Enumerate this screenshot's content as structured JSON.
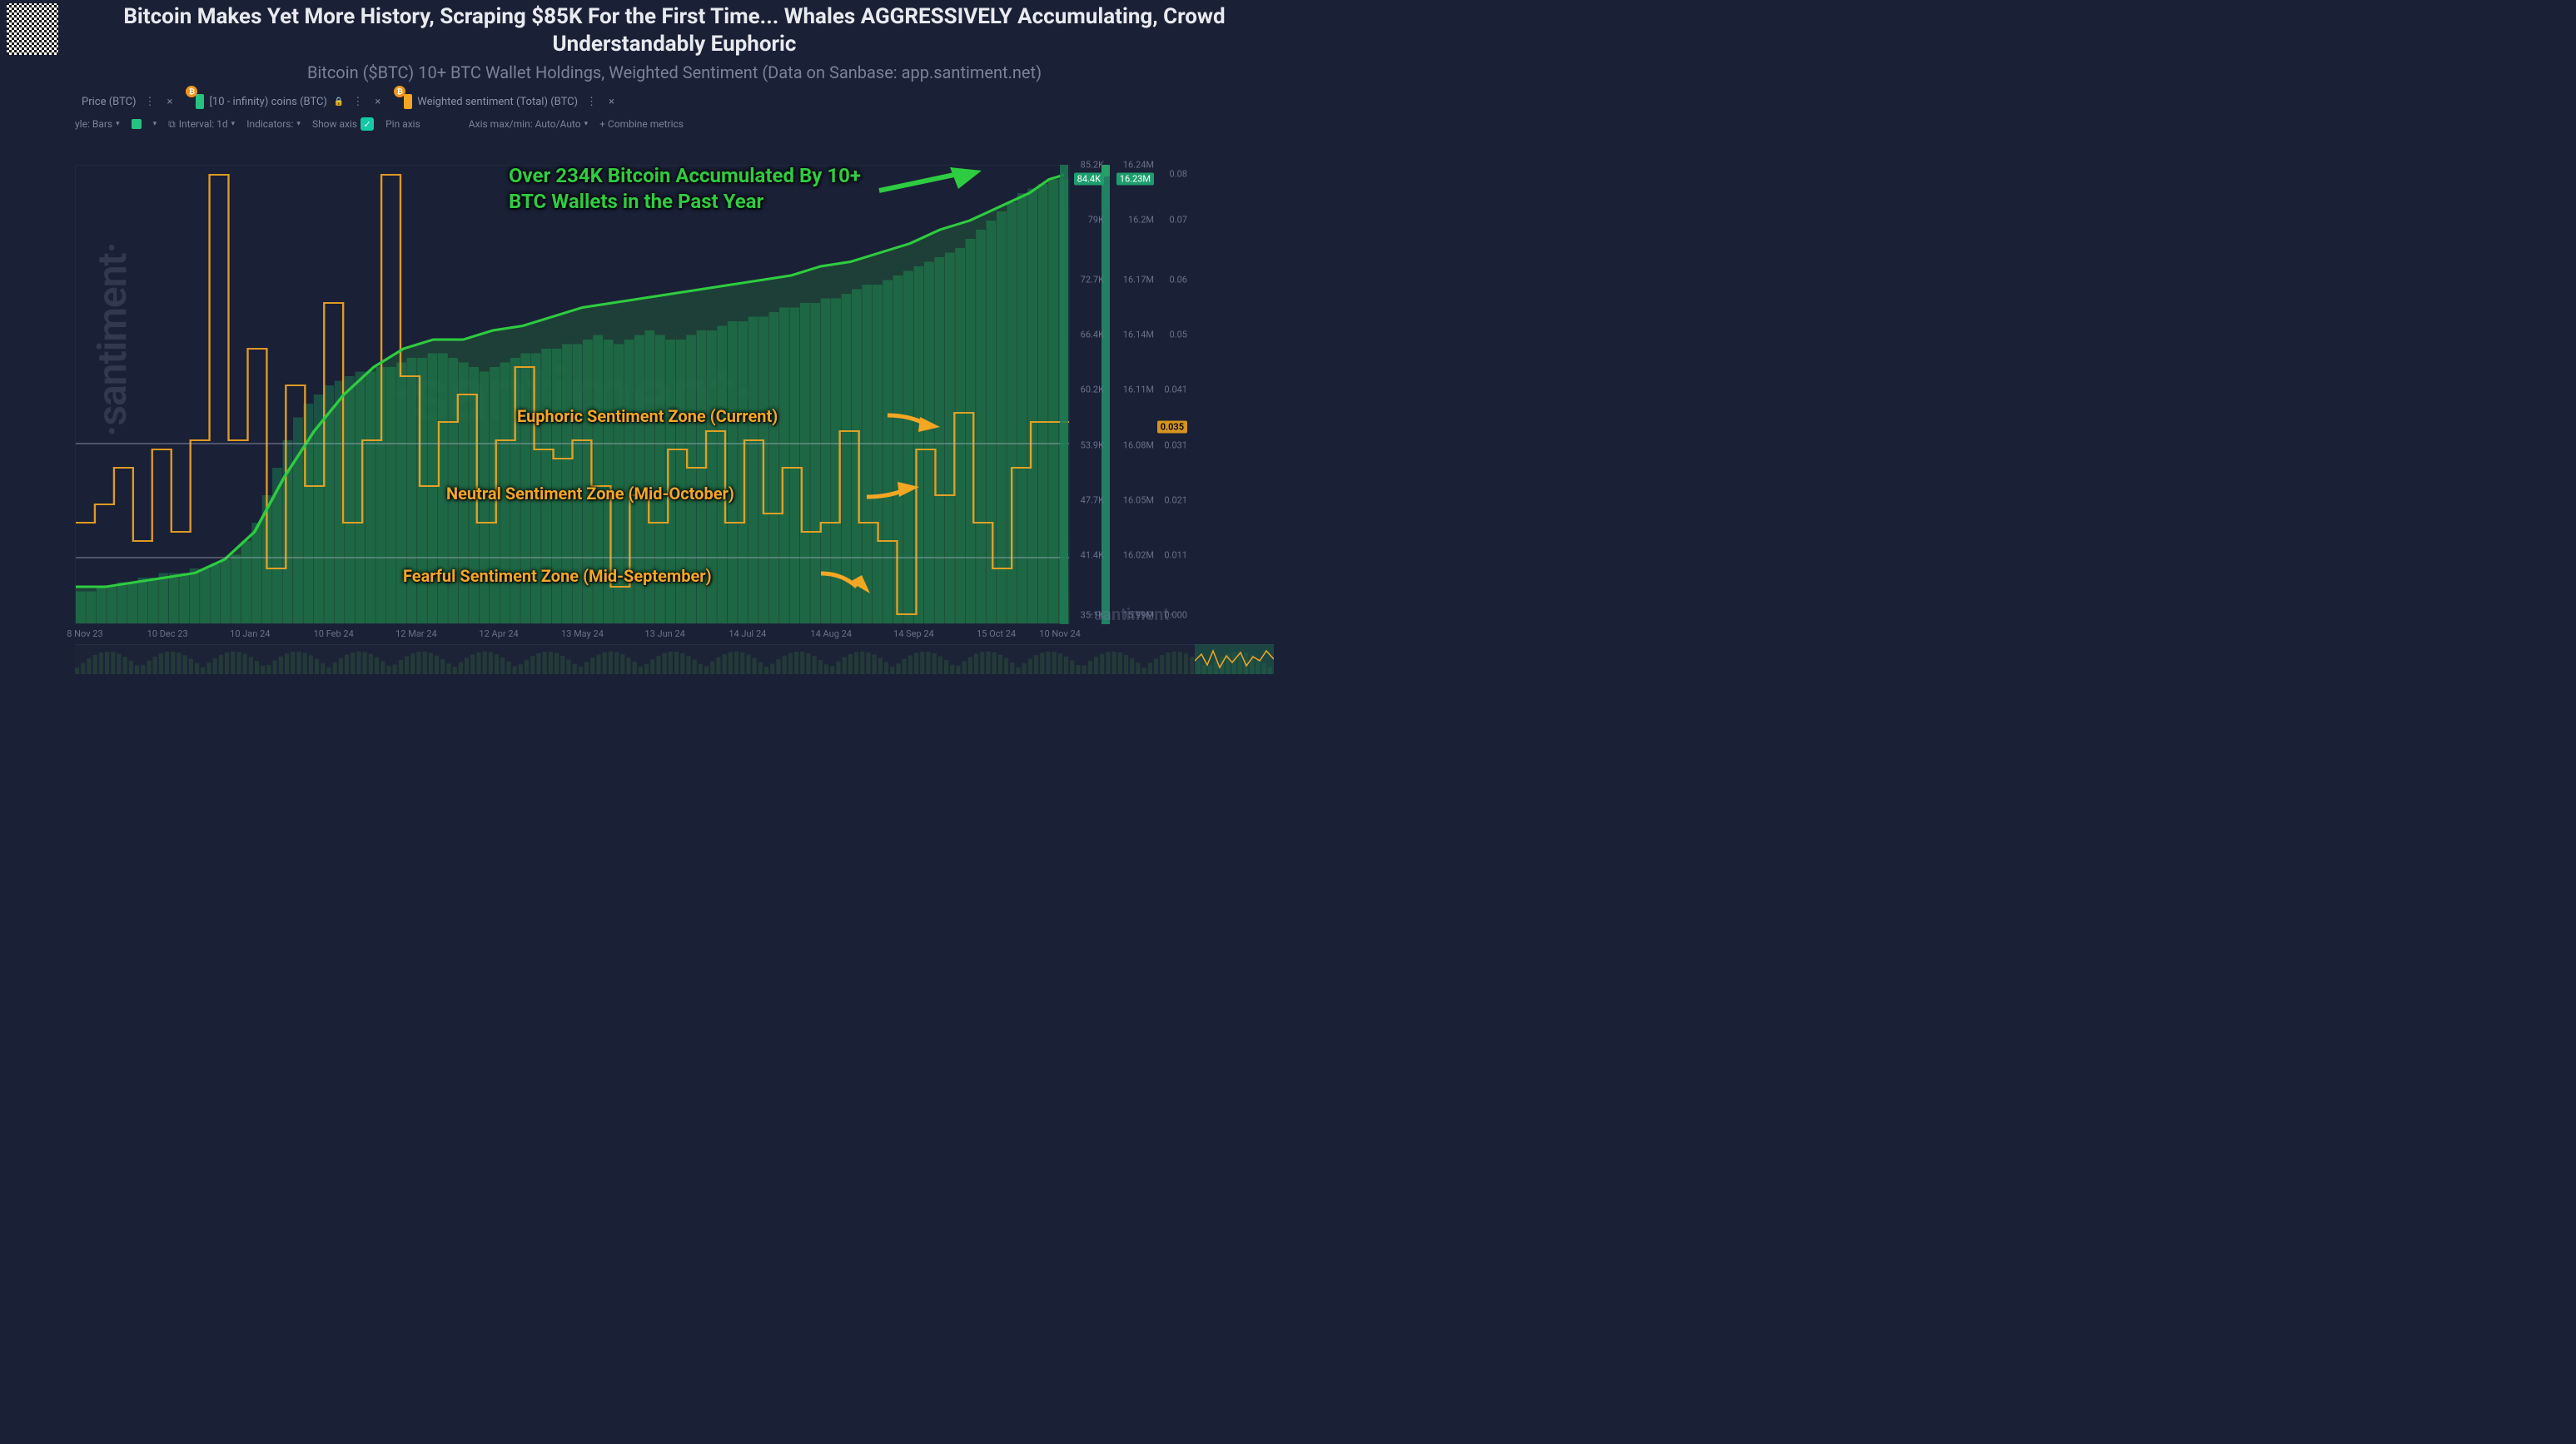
{
  "header": {
    "title": "Bitcoin Makes Yet More History, Scraping $85K For the First Time... Whales AGGRESSIVELY Accumulating, Crowd Understandably Euphoric",
    "subtitle": "Bitcoin ($BTC) 10+ BTC Wallet Holdings, Weighted Sentiment (Data on Sanbase: app.santiment.net)"
  },
  "legend": {
    "items": [
      {
        "label": "Price (BTC)",
        "swatch": null,
        "badge": false,
        "lock": false
      },
      {
        "label": "[10 - infinity) coins (BTC)",
        "swatch": "#26c281",
        "badge": true,
        "lock": true
      },
      {
        "label": "Weighted sentiment (Total) (BTC)",
        "swatch": "#f5a623",
        "badge": true,
        "lock": false
      }
    ]
  },
  "toolbar": {
    "style_label": "yle: Bars",
    "interval_label": "Interval: 1d",
    "indicators_label": "Indicators:",
    "show_axis": "Show axis",
    "pin_axis": "Pin axis",
    "axis_minmax": "Axis max/min: Auto/Auto",
    "combine": "+  Combine metrics"
  },
  "chart": {
    "type": "combo-bar-line-step",
    "background": "#1a2035",
    "x": {
      "ticks": [
        "8 Nov 23",
        "10 Dec 23",
        "10 Jan 24",
        "10 Feb 24",
        "12 Mar 24",
        "12 Apr 24",
        "13 May 24",
        "13 Jun 24",
        "14 Jul 24",
        "14 Aug 24",
        "14 Sep 24",
        "15 Oct 24",
        "10 Nov 24"
      ],
      "tick_positions_pct": [
        1,
        9.3,
        17.6,
        26,
        34.3,
        42.6,
        51,
        59.3,
        67.6,
        76,
        84.3,
        92.6,
        99
      ]
    },
    "y_price": {
      "ticks": [
        "85.2K",
        "84.4K",
        "79K",
        "72.7K",
        "66.4K",
        "60.2K",
        "53.9K",
        "47.7K",
        "41.4K",
        "35.1K"
      ],
      "positions_pct": [
        0,
        3,
        12,
        25,
        37,
        49,
        61,
        73,
        85,
        98
      ],
      "highlight_idx": 1,
      "color": "#6a7288"
    },
    "y_holdings": {
      "ticks": [
        "16.24M",
        "16.23M",
        "16.2M",
        "16.17M",
        "16.14M",
        "16.11M",
        "16.08M",
        "16.05M",
        "16.02M",
        "15.99M"
      ],
      "positions_pct": [
        0,
        3,
        12,
        25,
        37,
        49,
        61,
        73,
        85,
        98
      ],
      "highlight_idx": 1,
      "color": "#6a7288"
    },
    "y_sentiment": {
      "ticks": [
        "0.08",
        "0.07",
        "0.06",
        "0.05",
        "0.041",
        "0.035",
        "0.031",
        "0.021",
        "0.011",
        "0.000"
      ],
      "positions_pct": [
        2,
        12,
        25,
        37,
        49,
        57,
        61,
        73,
        85,
        98
      ],
      "highlight_idx": 5,
      "color": "#6a7288"
    },
    "sentiment_zone_lines_pct": [
      60.5,
      85.5
    ],
    "holdings_line": {
      "color": "#2ecc40",
      "width": 3,
      "points_pct": [
        [
          0,
          92
        ],
        [
          3,
          92
        ],
        [
          6,
          91
        ],
        [
          9,
          90
        ],
        [
          12,
          89
        ],
        [
          15,
          86
        ],
        [
          18,
          80
        ],
        [
          21,
          68
        ],
        [
          24,
          58
        ],
        [
          27,
          50
        ],
        [
          30,
          44
        ],
        [
          33,
          40
        ],
        [
          36,
          38
        ],
        [
          39,
          38
        ],
        [
          42,
          36
        ],
        [
          45,
          35
        ],
        [
          48,
          33
        ],
        [
          51,
          31
        ],
        [
          54,
          30
        ],
        [
          57,
          29
        ],
        [
          60,
          28
        ],
        [
          63,
          27
        ],
        [
          66,
          26
        ],
        [
          69,
          25
        ],
        [
          72,
          24
        ],
        [
          75,
          22
        ],
        [
          78,
          21
        ],
        [
          81,
          19
        ],
        [
          84,
          17
        ],
        [
          87,
          14
        ],
        [
          90,
          12
        ],
        [
          93,
          9
        ],
        [
          96,
          6
        ],
        [
          98,
          3
        ],
        [
          99.5,
          2
        ]
      ]
    },
    "price_bars": {
      "color": "#1d7a52",
      "opacity": 0.55,
      "heights_pct": [
        93,
        93,
        92,
        92,
        91,
        91,
        90,
        90,
        89,
        89,
        89,
        88,
        88,
        87,
        86,
        85,
        82,
        78,
        72,
        66,
        60,
        55,
        52,
        50,
        48,
        47,
        46,
        45,
        45,
        44,
        44,
        43,
        42,
        42,
        41,
        41,
        42,
        43,
        44,
        45,
        44,
        43,
        42,
        41,
        41,
        40,
        40,
        39,
        39,
        38,
        37,
        38,
        39,
        38,
        37,
        36,
        37,
        38,
        38,
        37,
        36,
        36,
        35,
        34,
        34,
        33,
        33,
        32,
        31,
        31,
        30,
        30,
        29,
        29,
        28,
        27,
        26,
        26,
        25,
        24,
        23,
        22,
        21,
        20,
        19,
        18,
        16,
        14,
        12,
        10,
        8,
        6,
        5,
        4,
        3,
        3
      ]
    },
    "sentiment_step": {
      "color": "#f5a623",
      "width": 2,
      "values_pct": [
        78,
        78,
        74,
        74,
        66,
        66,
        82,
        82,
        62,
        62,
        80,
        80,
        60,
        60,
        2,
        2,
        60,
        60,
        40,
        40,
        88,
        88,
        48,
        48,
        70,
        70,
        30,
        30,
        78,
        78,
        60,
        60,
        2,
        2,
        46,
        46,
        70,
        70,
        56,
        56,
        50,
        50,
        78,
        78,
        60,
        60,
        44,
        44,
        62,
        62,
        64,
        64,
        60,
        60,
        70,
        70,
        92,
        92,
        72,
        72,
        78,
        78,
        62,
        62,
        66,
        66,
        58,
        58,
        78,
        78,
        60,
        60,
        76,
        76,
        66,
        66,
        80,
        80,
        78,
        78,
        58,
        58,
        78,
        78,
        82,
        82,
        98,
        98,
        62,
        62,
        72,
        72,
        54,
        54,
        78,
        78,
        88,
        88,
        66,
        66,
        56,
        56,
        56,
        56
      ]
    }
  },
  "annotations": {
    "main": "Over 234K Bitcoin Accumulated By 10+ BTC Wallets in the Past Year",
    "euphoric": "Euphoric Sentiment Zone (Current)",
    "neutral": "Neutral Sentiment Zone (Mid-October)",
    "fearful": "Fearful Sentiment Zone (Mid-September)"
  },
  "watermark": "·santiment·",
  "colors": {
    "bg": "#1a2035",
    "text_muted": "#7a8299",
    "green": "#26c281",
    "green_bright": "#2ecc40",
    "orange": "#f5a623",
    "bar_green": "#1d7a52"
  }
}
